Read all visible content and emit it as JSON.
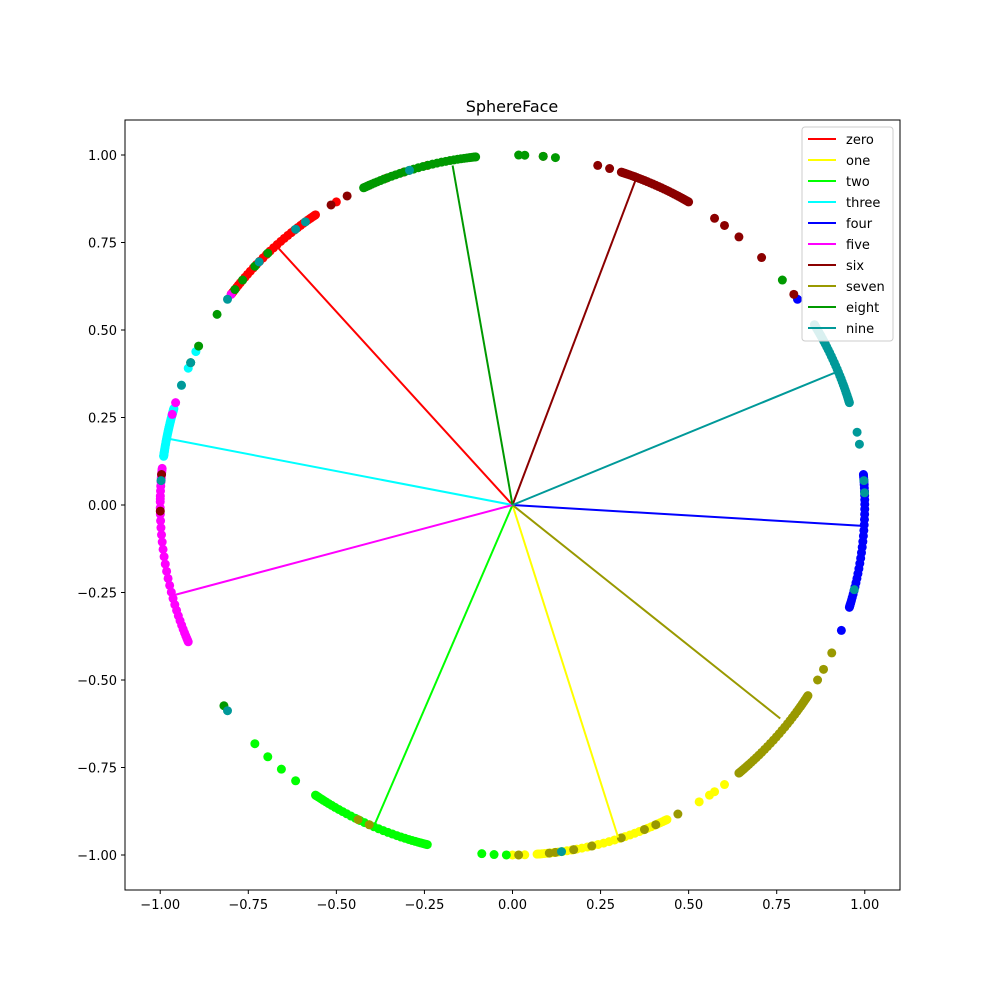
{
  "chart_data": {
    "type": "scatter",
    "title": "SphereFace",
    "xlabel": "",
    "ylabel": "",
    "xlim": [
      -1.1,
      1.1
    ],
    "ylim": [
      -1.1,
      1.1
    ],
    "grid": false,
    "legend_position": "top-right",
    "xticks": [
      -1.0,
      -0.75,
      -0.5,
      -0.25,
      0.0,
      0.25,
      0.5,
      0.75,
      1.0
    ],
    "yticks": [
      -1.0,
      -0.75,
      -0.5,
      -0.25,
      0.0,
      0.25,
      0.5,
      0.75,
      1.0
    ],
    "xtick_labels": [
      "−1.00",
      "−0.75",
      "−0.50",
      "−0.25",
      "0.00",
      "0.25",
      "0.50",
      "0.75",
      "1.00"
    ],
    "ytick_labels": [
      "−1.00",
      "−0.75",
      "−0.50",
      "−0.25",
      "0.00",
      "0.25",
      "0.50",
      "0.75",
      "1.00"
    ],
    "series": [
      {
        "name": "zero",
        "color": "#ff0000",
        "center": [
          -0.67,
          0.74
        ],
        "arc_deg": [
          124,
          143
        ],
        "extra_deg": [
          104,
          108,
          111,
          120
        ]
      },
      {
        "name": "one",
        "color": "#ffff00",
        "center": [
          0.3,
          -0.95
        ],
        "arc_deg": [
          -86,
          -64
        ],
        "extra_deg": [
          -90,
          -89,
          -88,
          -58,
          -56,
          -55,
          -53
        ]
      },
      {
        "name": "two",
        "color": "#00ff00",
        "center": [
          -0.39,
          -0.91
        ],
        "arc_deg": [
          -124,
          -104
        ],
        "extra_deg": [
          -137,
          -134,
          -131,
          -128,
          -95,
          -93,
          -91
        ]
      },
      {
        "name": "three",
        "color": "#00ffff",
        "center": [
          -0.98,
          0.19
        ],
        "arc_deg": [
          164,
          172
        ],
        "extra_deg": [
          154,
          157,
          160
        ]
      },
      {
        "name": "four",
        "color": "#0000ff",
        "center": [
          1.0,
          -0.06
        ],
        "arc_deg": [
          -17,
          5
        ],
        "extra_deg": [
          -21,
          36
        ]
      },
      {
        "name": "five",
        "color": "#ff00ff",
        "center": [
          -0.97,
          -0.26
        ],
        "arc_deg": [
          -157,
          -186
        ],
        "extra_deg": [
          179,
          165,
          163,
          143
        ]
      },
      {
        "name": "six",
        "color": "#8b0000",
        "center": [
          0.35,
          0.93
        ],
        "arc_deg": [
          60,
          72
        ],
        "extra_deg": [
          37,
          45,
          50,
          53,
          55,
          74,
          76,
          85,
          114,
          118,
          121,
          175,
          181
        ]
      },
      {
        "name": "seven",
        "color": "#999900",
        "center": [
          0.76,
          -0.61
        ],
        "arc_deg": [
          -50,
          -33
        ],
        "extra_deg": [
          -25,
          -28,
          -30,
          -62,
          -66,
          -68,
          -72,
          -77,
          -80,
          -83,
          -84,
          -89,
          -114,
          -116
        ]
      },
      {
        "name": "eight",
        "color": "#009900",
        "center": [
          -0.17,
          0.97
        ],
        "arc_deg": [
          96,
          115
        ],
        "extra_deg": [
          83,
          85,
          88,
          89,
          40,
          134,
          137,
          140,
          142,
          147,
          156,
          153,
          215
        ]
      },
      {
        "name": "nine",
        "color": "#009999",
        "center": [
          0.92,
          0.38
        ],
        "arc_deg": [
          17,
          31
        ],
        "extra_deg": [
          12,
          10,
          2,
          4,
          -14,
          144,
          136,
          156,
          160,
          176,
          216,
          -82,
          126,
          128,
          107
        ]
      }
    ]
  }
}
